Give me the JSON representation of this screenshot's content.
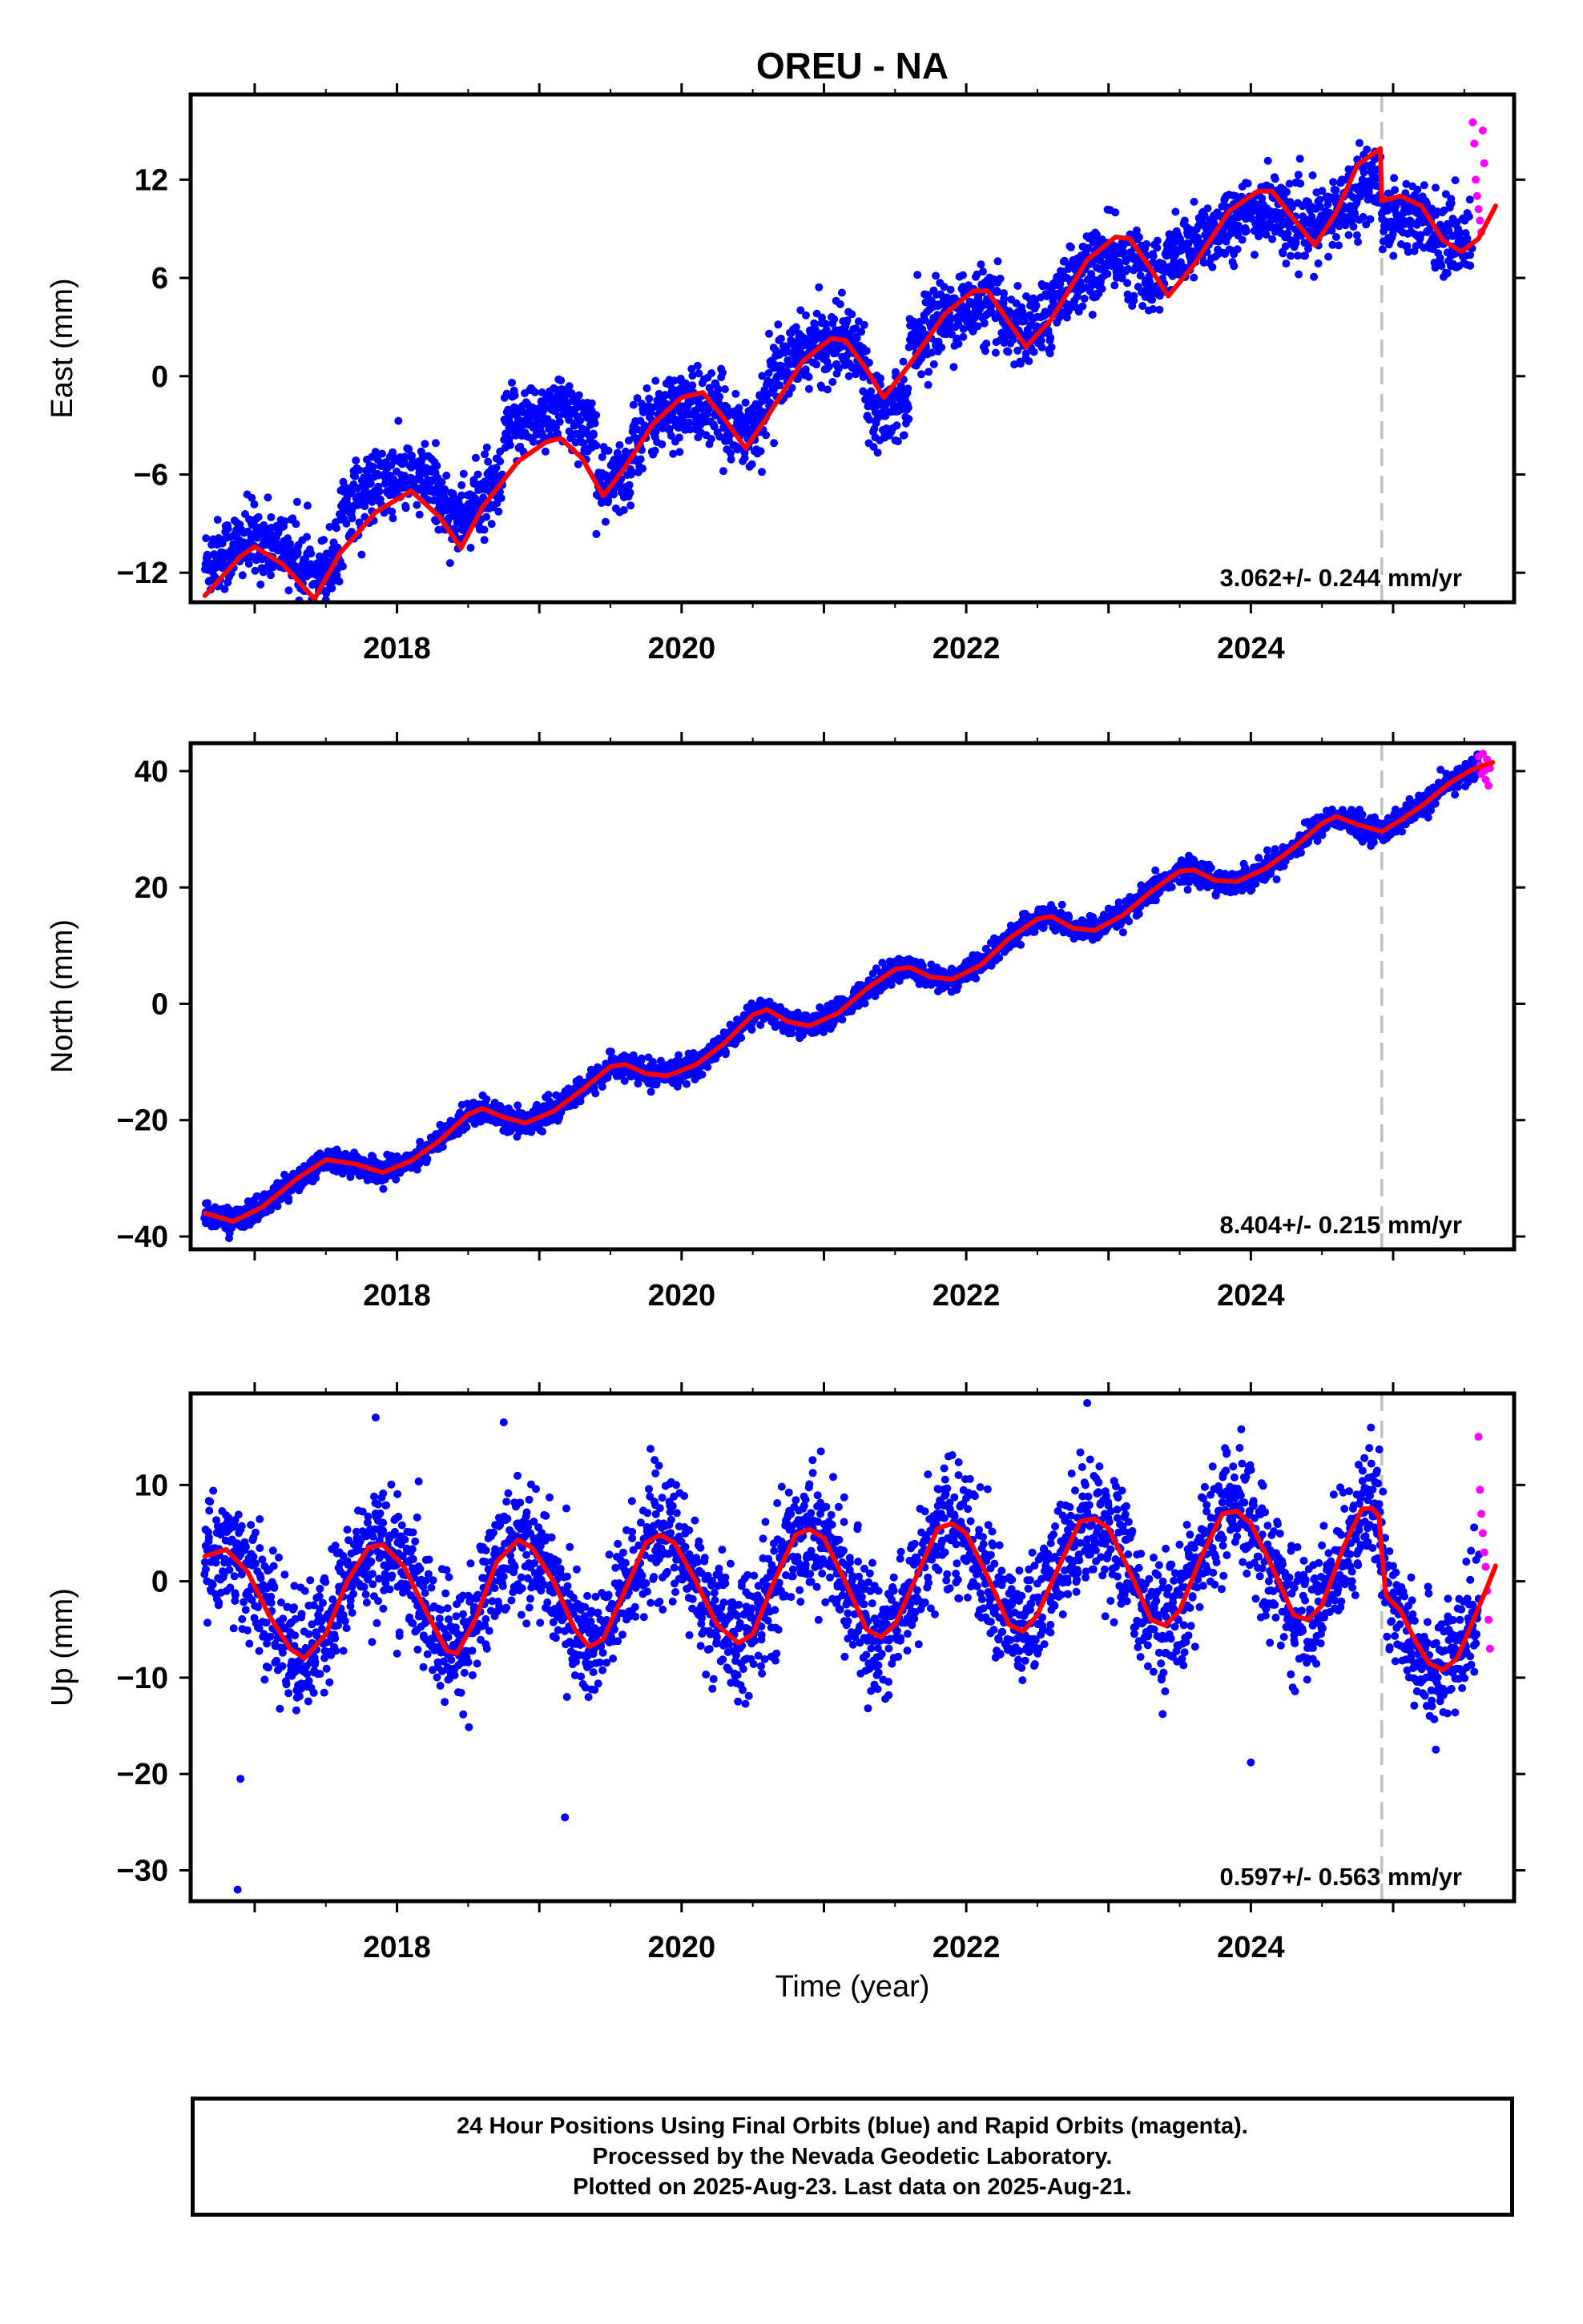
{
  "title": "OREU - NA",
  "colors": {
    "final_orbits": "#0000ff",
    "rapid_orbits": "#ff00ff",
    "model": "#ff0000",
    "equipment_change": "#c0c0c0",
    "frame": "#000000"
  },
  "x_axis": {
    "label": "Time (year)",
    "range": [
      2016.55,
      2025.85
    ],
    "ticks": [
      2018,
      2020,
      2022,
      2024
    ],
    "minor_tick_step": 0.5
  },
  "equipment_change_year": 2024.92,
  "chart_data": [
    {
      "type": "scatter",
      "component": "east",
      "ylabel": "East (mm)",
      "ylim": [
        -13.8,
        17.2
      ],
      "yticks": [
        -12,
        -6,
        0,
        6,
        12
      ],
      "rate_label": "3.062+/- 0.244 mm/yr",
      "model": {
        "name": "model",
        "slope": 2.7,
        "intercept": -9.8,
        "t0": 2017.0,
        "amp_annual": 3.1,
        "phase_annual": 0.9,
        "amp_semiannual": 1.0,
        "phase_semiannual": 0.3,
        "offsets": [
          {
            "year": 2017.25,
            "dy": 0.0
          }
        ],
        "curve": [
          [
            2016.65,
            -13.4
          ],
          [
            2016.9,
            -11.0
          ],
          [
            2017.0,
            -10.4
          ],
          [
            2017.2,
            -11.5
          ],
          [
            2017.42,
            -13.6
          ],
          [
            2017.6,
            -10.8
          ],
          [
            2017.85,
            -8.3
          ],
          [
            2018.1,
            -7.0
          ],
          [
            2018.3,
            -8.6
          ],
          [
            2018.45,
            -10.5
          ],
          [
            2018.6,
            -8.0
          ],
          [
            2018.85,
            -5.2
          ],
          [
            2019.05,
            -4.0
          ],
          [
            2019.15,
            -3.8
          ],
          [
            2019.3,
            -5.0
          ],
          [
            2019.45,
            -7.3
          ],
          [
            2019.6,
            -5.6
          ],
          [
            2019.8,
            -2.9
          ],
          [
            2020.0,
            -1.3
          ],
          [
            2020.15,
            -1.0
          ],
          [
            2020.3,
            -2.6
          ],
          [
            2020.45,
            -4.4
          ],
          [
            2020.6,
            -2.5
          ],
          [
            2020.85,
            0.9
          ],
          [
            2021.05,
            2.3
          ],
          [
            2021.15,
            2.2
          ],
          [
            2021.3,
            0.4
          ],
          [
            2021.42,
            -1.3
          ],
          [
            2021.6,
            0.7
          ],
          [
            2021.85,
            3.8
          ],
          [
            2022.05,
            5.2
          ],
          [
            2022.15,
            5.2
          ],
          [
            2022.3,
            3.3
          ],
          [
            2022.42,
            1.8
          ],
          [
            2022.6,
            3.5
          ],
          [
            2022.85,
            7.1
          ],
          [
            2023.05,
            8.5
          ],
          [
            2023.15,
            8.4
          ],
          [
            2023.3,
            6.5
          ],
          [
            2023.42,
            4.9
          ],
          [
            2023.6,
            6.8
          ],
          [
            2023.85,
            10.1
          ],
          [
            2024.05,
            11.3
          ],
          [
            2024.15,
            11.3
          ],
          [
            2024.3,
            9.6
          ],
          [
            2024.45,
            8.0
          ],
          [
            2024.6,
            10.0
          ],
          [
            2024.75,
            12.9
          ],
          [
            2024.91,
            13.9
          ],
          [
            2024.92,
            10.7
          ],
          [
            2025.05,
            11.0
          ],
          [
            2025.2,
            10.4
          ],
          [
            2025.35,
            8.3
          ],
          [
            2025.48,
            7.6
          ],
          [
            2025.6,
            8.4
          ],
          [
            2025.72,
            10.4
          ]
        ]
      },
      "final_points": {
        "range": [
          2016.65,
          2025.55
        ],
        "residual_sd": 1.1,
        "blocks": [
          {
            "from": 2016.65,
            "to": 2017.3,
            "level": -9.5
          },
          {
            "from": 2017.3,
            "to": 2017.6,
            "level": -11.0
          },
          {
            "from": 2017.6,
            "to": 2018.3,
            "level": -5.2
          },
          {
            "from": 2018.3,
            "to": 2018.75,
            "level": -7.0
          },
          {
            "from": 2018.75,
            "to": 2019.4,
            "level": -0.5
          },
          {
            "from": 2019.4,
            "to": 2019.65,
            "level": -6.5
          },
          {
            "from": 2019.65,
            "to": 2020.6,
            "level": -2.5
          },
          {
            "from": 2020.6,
            "to": 2021.3,
            "level": 2.0
          },
          {
            "from": 2021.3,
            "to": 2021.6,
            "level": -2.8
          },
          {
            "from": 2021.6,
            "to": 2022.6,
            "level": 3.5
          },
          {
            "from": 2022.6,
            "to": 2023.4,
            "level": 6.0
          },
          {
            "from": 2023.4,
            "to": 2024.4,
            "level": 9.0
          },
          {
            "from": 2024.4,
            "to": 2024.92,
            "level": 10.0
          },
          {
            "from": 2024.92,
            "to": 2025.55,
            "level": 8.8
          }
        ]
      },
      "rapid_points": {
        "range": [
          2025.55,
          2025.64
        ],
        "samples": [
          [
            2025.56,
            15.5
          ],
          [
            2025.57,
            14.2
          ],
          [
            2025.58,
            12.0
          ],
          [
            2025.59,
            11.0
          ],
          [
            2025.6,
            10.2
          ],
          [
            2025.61,
            9.5
          ],
          [
            2025.62,
            8.8
          ],
          [
            2025.63,
            15.0
          ],
          [
            2025.64,
            13.0
          ]
        ]
      }
    },
    {
      "type": "scatter",
      "component": "north",
      "ylabel": "North (mm)",
      "ylim": [
        -42.2,
        44.8
      ],
      "yticks": [
        -40,
        -20,
        0,
        20,
        40
      ],
      "rate_label": "8.404+/- 0.215 mm/yr",
      "model": {
        "name": "model",
        "curve": [
          [
            2016.65,
            -36.0
          ],
          [
            2016.85,
            -37.4
          ],
          [
            2017.05,
            -35.0
          ],
          [
            2017.3,
            -30.0
          ],
          [
            2017.5,
            -26.8
          ],
          [
            2017.7,
            -27.5
          ],
          [
            2017.9,
            -29.0
          ],
          [
            2018.1,
            -27.0
          ],
          [
            2018.3,
            -23.5
          ],
          [
            2018.5,
            -19.0
          ],
          [
            2018.6,
            -18.0
          ],
          [
            2018.75,
            -19.5
          ],
          [
            2018.9,
            -20.5
          ],
          [
            2019.1,
            -18.5
          ],
          [
            2019.3,
            -14.8
          ],
          [
            2019.5,
            -10.8
          ],
          [
            2019.6,
            -10.4
          ],
          [
            2019.75,
            -12.0
          ],
          [
            2019.9,
            -12.4
          ],
          [
            2020.1,
            -10.5
          ],
          [
            2020.3,
            -6.8
          ],
          [
            2020.5,
            -1.9
          ],
          [
            2020.6,
            -1.0
          ],
          [
            2020.75,
            -3.1
          ],
          [
            2020.9,
            -3.8
          ],
          [
            2021.1,
            -1.6
          ],
          [
            2021.3,
            2.6
          ],
          [
            2021.5,
            5.9
          ],
          [
            2021.6,
            6.3
          ],
          [
            2021.75,
            4.6
          ],
          [
            2021.9,
            4.2
          ],
          [
            2022.1,
            6.6
          ],
          [
            2022.3,
            11.2
          ],
          [
            2022.5,
            14.6
          ],
          [
            2022.6,
            15.0
          ],
          [
            2022.75,
            13.0
          ],
          [
            2022.9,
            12.6
          ],
          [
            2023.1,
            15.2
          ],
          [
            2023.3,
            19.3
          ],
          [
            2023.5,
            22.8
          ],
          [
            2023.6,
            23.0
          ],
          [
            2023.75,
            21.2
          ],
          [
            2023.9,
            21.0
          ],
          [
            2024.1,
            23.2
          ],
          [
            2024.3,
            26.8
          ],
          [
            2024.5,
            31.0
          ],
          [
            2024.6,
            32.2
          ],
          [
            2024.75,
            30.8
          ],
          [
            2024.92,
            29.6
          ],
          [
            2025.05,
            31.5
          ],
          [
            2025.2,
            34.0
          ],
          [
            2025.4,
            38.0
          ],
          [
            2025.55,
            40.2
          ],
          [
            2025.7,
            41.5
          ]
        ]
      },
      "final_points": {
        "range": [
          2016.65,
          2025.6
        ],
        "residual_sd": 1.0
      },
      "rapid_points": {
        "range": [
          2025.6,
          2025.68
        ],
        "samples": [
          [
            2025.6,
            42.5
          ],
          [
            2025.61,
            41.0
          ],
          [
            2025.62,
            39.5
          ],
          [
            2025.63,
            43.0
          ],
          [
            2025.64,
            40.0
          ],
          [
            2025.65,
            38.5
          ],
          [
            2025.66,
            42.0
          ],
          [
            2025.67,
            37.5
          ],
          [
            2025.68,
            40.5
          ]
        ]
      }
    },
    {
      "type": "scatter",
      "component": "up",
      "ylabel": "Up (mm)",
      "ylim": [
        -33.2,
        19.5
      ],
      "yticks": [
        -30,
        -20,
        -10,
        0,
        10
      ],
      "rate_label": "0.597+/- 0.563 mm/yr",
      "model": {
        "name": "model",
        "curve": [
          [
            2016.65,
            2.6
          ],
          [
            2016.8,
            3.3
          ],
          [
            2016.95,
            1.0
          ],
          [
            2017.1,
            -3.5
          ],
          [
            2017.25,
            -7.0
          ],
          [
            2017.35,
            -8.0
          ],
          [
            2017.5,
            -5.5
          ],
          [
            2017.65,
            0.0
          ],
          [
            2017.8,
            3.5
          ],
          [
            2017.9,
            3.8
          ],
          [
            2018.05,
            1.5
          ],
          [
            2018.2,
            -3.0
          ],
          [
            2018.35,
            -7.2
          ],
          [
            2018.42,
            -7.5
          ],
          [
            2018.55,
            -4.0
          ],
          [
            2018.7,
            2.0
          ],
          [
            2018.85,
            4.3
          ],
          [
            2018.95,
            3.5
          ],
          [
            2019.1,
            0.0
          ],
          [
            2019.25,
            -5.0
          ],
          [
            2019.35,
            -6.8
          ],
          [
            2019.45,
            -6.0
          ],
          [
            2019.6,
            -1.0
          ],
          [
            2019.75,
            4.0
          ],
          [
            2019.85,
            4.8
          ],
          [
            2019.95,
            4.0
          ],
          [
            2020.1,
            0.0
          ],
          [
            2020.25,
            -4.5
          ],
          [
            2020.4,
            -6.4
          ],
          [
            2020.5,
            -5.5
          ],
          [
            2020.65,
            0.0
          ],
          [
            2020.8,
            4.8
          ],
          [
            2020.9,
            5.4
          ],
          [
            2021.0,
            4.5
          ],
          [
            2021.15,
            0.0
          ],
          [
            2021.3,
            -5.0
          ],
          [
            2021.4,
            -5.8
          ],
          [
            2021.5,
            -4.5
          ],
          [
            2021.65,
            0.5
          ],
          [
            2021.8,
            5.5
          ],
          [
            2021.9,
            6.0
          ],
          [
            2022.0,
            5.0
          ],
          [
            2022.15,
            0.5
          ],
          [
            2022.3,
            -4.5
          ],
          [
            2022.4,
            -5.2
          ],
          [
            2022.5,
            -3.5
          ],
          [
            2022.65,
            1.5
          ],
          [
            2022.8,
            6.2
          ],
          [
            2022.9,
            6.5
          ],
          [
            2023.0,
            5.5
          ],
          [
            2023.15,
            1.0
          ],
          [
            2023.3,
            -4.0
          ],
          [
            2023.4,
            -4.6
          ],
          [
            2023.5,
            -3.0
          ],
          [
            2023.65,
            2.5
          ],
          [
            2023.8,
            7.0
          ],
          [
            2023.9,
            7.3
          ],
          [
            2024.0,
            6.0
          ],
          [
            2024.15,
            1.5
          ],
          [
            2024.3,
            -3.5
          ],
          [
            2024.4,
            -4.0
          ],
          [
            2024.5,
            -2.5
          ],
          [
            2024.65,
            3.5
          ],
          [
            2024.78,
            7.5
          ],
          [
            2024.85,
            7.6
          ],
          [
            2024.9,
            6.8
          ],
          [
            2024.92,
            3.0
          ],
          [
            2024.95,
            -1.5
          ],
          [
            2025.05,
            -3.0
          ],
          [
            2025.15,
            -6.0
          ],
          [
            2025.25,
            -8.5
          ],
          [
            2025.35,
            -9.2
          ],
          [
            2025.45,
            -8.0
          ],
          [
            2025.55,
            -4.5
          ],
          [
            2025.65,
            -1.0
          ],
          [
            2025.72,
            1.6
          ]
        ]
      },
      "final_points": {
        "range": [
          2016.65,
          2025.6
        ],
        "residual_sd": 3.2,
        "outliers": [
          [
            2016.9,
            -20.5
          ],
          [
            2016.88,
            -32.0
          ],
          [
            2019.18,
            -24.5
          ],
          [
            2024.0,
            -18.8
          ],
          [
            2022.85,
            18.5
          ],
          [
            2017.85,
            17.0
          ],
          [
            2018.75,
            16.5
          ]
        ]
      },
      "rapid_points": {
        "range": [
          2025.6,
          2025.68
        ],
        "samples": [
          [
            2025.6,
            15.0
          ],
          [
            2025.61,
            9.5
          ],
          [
            2025.62,
            7.0
          ],
          [
            2025.63,
            5.0
          ],
          [
            2025.64,
            3.0
          ],
          [
            2025.65,
            1.5
          ],
          [
            2025.66,
            -1.0
          ],
          [
            2025.67,
            -4.0
          ],
          [
            2025.68,
            -7.0
          ]
        ]
      }
    }
  ],
  "caption": {
    "line1": "24 Hour Positions Using Final Orbits (blue) and Rapid Orbits (magenta).",
    "line2": "Processed by the Nevada Geodetic Laboratory.",
    "line3": "Plotted on 2025-Aug-23. Last data on 2025-Aug-21."
  }
}
